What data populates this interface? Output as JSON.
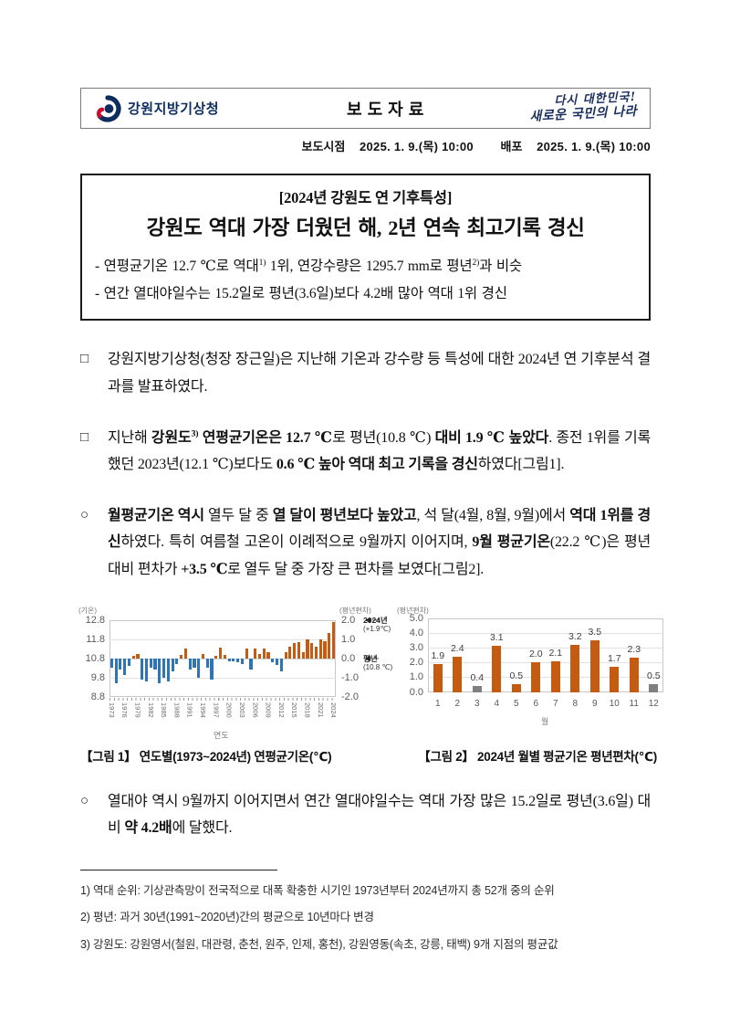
{
  "header": {
    "agency": "강원지방기상청",
    "doc_type": "보도자료",
    "slogan_line1": "다시 대한민국!",
    "slogan_line2": "새로운 국민의 나라"
  },
  "release_info": {
    "release_label": "보도시점",
    "release_value": "2025. 1. 9.(목) 10:00",
    "distribute_label": "배포",
    "distribute_value": "2025. 1. 9.(목) 10:00"
  },
  "title_box": {
    "subtitle": "[2024년 강원도 연 기후특성]",
    "title": "강원도 역대 가장 더웠던 해, 2년 연속 최고기록 경신",
    "bullet1": [
      {
        "t": "- 연평균기온 12.7 ℃로 역대"
      },
      {
        "t": "1)",
        "sup": true
      },
      {
        "t": " 1위, 연강수량은 1295.7 mm로 평년"
      },
      {
        "t": "2)",
        "sup": true
      },
      {
        "t": "과 비슷"
      }
    ],
    "bullet2": [
      {
        "t": "- 연간 열대야일수는 15.2일로 평년(3.6일)보다 4.2배 많아 역대 1위 경신"
      }
    ]
  },
  "paragraphs": [
    {
      "marker": "□",
      "segments": [
        {
          "t": "강원지방기상청(청장 장근일)은 지난해 기온과 강수량 등 특성에 대한 2024년 연 기후분석 결과를 발표하였다."
        }
      ]
    },
    {
      "marker": "□",
      "segments": [
        {
          "t": "지난해 "
        },
        {
          "t": "강원도",
          "b": true
        },
        {
          "t": "3)",
          "b": true,
          "sup": true
        },
        {
          "t": " 연평균기온은 12.7 ℃",
          "b": true
        },
        {
          "t": "로 평년(10.8 ℃) "
        },
        {
          "t": "대비 1.9 ℃ 높았다",
          "b": true
        },
        {
          "t": ". 종전 1위를 기록했던 2023년(12.1 ℃)보다도 "
        },
        {
          "t": "0.6 ℃ 높아 역대 최고 기록을 경신",
          "b": true
        },
        {
          "t": "하였다[그림1]."
        }
      ]
    },
    {
      "marker": "○",
      "segments": [
        {
          "t": "월평균기온 역시",
          "b": true
        },
        {
          "t": " 열두 달 중 "
        },
        {
          "t": "열 달이 평년보다 높았고",
          "b": true
        },
        {
          "t": ", 석 달(4월, 8월, 9월)에서 "
        },
        {
          "t": "역대 1위를 경신",
          "b": true
        },
        {
          "t": "하였다. 특히 여름철 고온이 이례적으로 9월까지 이어지며, "
        },
        {
          "t": "9월 평균기온",
          "b": true
        },
        {
          "t": "(22.2 ℃)은 평년 대비 편차가 "
        },
        {
          "t": "+3.5 ℃",
          "b": true
        },
        {
          "t": "로 열두 달 중 가장 큰 편차를 보였다[그림2]."
        }
      ]
    },
    {
      "marker": "○",
      "segments": [
        {
          "t": "열대야 역시 9월까지 이어지면서 연간 열대야일수는 역대 가장 많은 15.2일로 평년(3.6일) 대비 "
        },
        {
          "t": "약 4.2배",
          "b": true
        },
        {
          "t": "에 달했다."
        }
      ]
    }
  ],
  "figure_captions": {
    "fig1": "【그림 1】 연도별(1973~2024년) 연평균기온(℃)",
    "fig2": "【그림 2】 2024년 월별 평균기온 평년편차(℃)"
  },
  "footnotes": [
    "1) 역대 순위: 기상관측망이 전국적으로 대폭 확충한 시기인 1973년부터 2024년까지 총 52개 중의 순위",
    "2) 평년: 과거 30년(1991~2020년)간의 평균으로 10년마다 변경",
    "3) 강원도: 강원영서(철원, 대관령, 춘천, 원주, 인제, 홍천), 강원영동(속초, 강릉, 태백) 9개 지점의 평균값"
  ],
  "chart_data": [
    {
      "type": "bar",
      "title": "연도별(1973~2024년) 연평균기온(℃)",
      "left_axis_label": "(기온)",
      "right_axis_label": "(평년편차)",
      "left_ticks": [
        "12.8",
        "11.8",
        "10.8",
        "9.8",
        "8.8"
      ],
      "right_ticks": [
        "2.0",
        "1.0",
        "0.0",
        "-1.0",
        "-2.0"
      ],
      "xlabel": "연도",
      "x_tick_years": [
        "1973",
        "1976",
        "1979",
        "1982",
        "1985",
        "1988",
        "1991",
        "1994",
        "1997",
        "2000",
        "2003",
        "2006",
        "2009",
        "2012",
        "2015",
        "2018",
        "2021",
        "2024"
      ],
      "baseline_mean_c": 10.8,
      "ylim_left": [
        8.8,
        12.8
      ],
      "ylim_right": [
        -2.0,
        2.0
      ],
      "years_start": 1973,
      "years_end": 2024,
      "anomaly_values_estimated": [
        -0.5,
        -1.3,
        -0.6,
        -0.9,
        -0.4,
        0.1,
        0.2,
        -1.1,
        -1.2,
        -0.5,
        -0.6,
        -1.3,
        -1.0,
        -1.2,
        -0.7,
        -0.3,
        0.15,
        0.5,
        -0.6,
        -0.5,
        -1.0,
        0.2,
        -0.5,
        -1.1,
        0.1,
        0.55,
        0.15,
        -0.15,
        -0.15,
        -0.2,
        -0.3,
        0.5,
        -0.6,
        0.5,
        0.2,
        0.5,
        0.3,
        -0.2,
        -0.35,
        -0.7,
        0.3,
        0.6,
        0.8,
        0.85,
        0.3,
        1.0,
        0.8,
        0.6,
        1.0,
        0.9,
        1.3,
        1.9
      ],
      "annotations": [
        {
          "at": 2.0,
          "line1": "2024년",
          "line2": "(+1.9℃)"
        },
        {
          "at": 0.0,
          "line1": "평년",
          "line2": "(10.8 ℃)"
        }
      ],
      "positive_color": "#C55A11",
      "negative_color": "#2E75B6",
      "grid": true,
      "legend": "none"
    },
    {
      "type": "bar",
      "title": "2024년 월별 평균기온 평년편차(℃)",
      "axis_label": "(평년편차)",
      "categories": [
        "1",
        "2",
        "3",
        "4",
        "5",
        "6",
        "7",
        "8",
        "9",
        "10",
        "11",
        "12"
      ],
      "values": [
        1.9,
        2.4,
        0.4,
        3.1,
        0.5,
        2.0,
        2.1,
        3.2,
        3.5,
        1.7,
        2.3,
        0.5
      ],
      "gray_months": [
        3,
        12
      ],
      "xlabel": "월",
      "ylim": [
        0,
        5
      ],
      "y_ticks": [
        "5.0",
        "4.0",
        "3.0",
        "2.0",
        "1.0",
        "0.0"
      ],
      "bar_color": "#C55A11",
      "gray_color": "#7F7F7F",
      "grid": true,
      "legend": "none"
    }
  ],
  "colors": {
    "navy_brand": "#0d2d5e",
    "slogan_navy": "#1b2f5e",
    "title_border": "#1a1a1a",
    "positive_orange": "#C55A11",
    "negative_blue": "#2E75B6",
    "gray_bar": "#7F7F7F",
    "gridline": "#e2e2e2"
  }
}
